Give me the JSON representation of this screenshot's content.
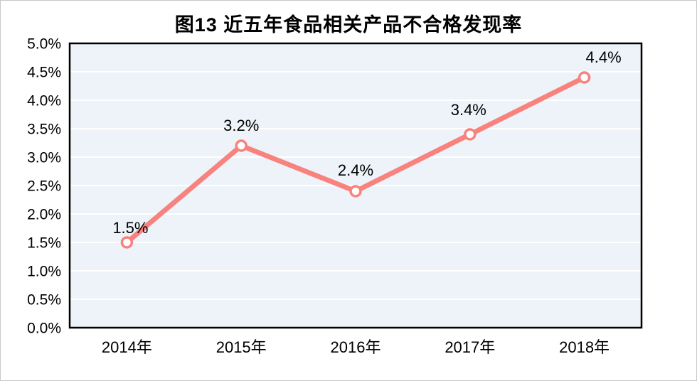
{
  "chart": {
    "title": "图13 近五年食品相关产品不合格发现率"
  },
  "chart_data": {
    "type": "line",
    "title": "图13 近五年食品相关产品不合格发现率",
    "categories": [
      "2014年",
      "2015年",
      "2016年",
      "2017年",
      "2018年"
    ],
    "values": [
      1.5,
      3.2,
      2.4,
      3.4,
      4.4
    ],
    "point_labels": [
      "1.5%",
      "3.2%",
      "2.4%",
      "3.4%",
      "4.4%"
    ],
    "y_ticks": [
      "0.0%",
      "0.5%",
      "1.0%",
      "1.5%",
      "2.0%",
      "2.5%",
      "3.0%",
      "3.5%",
      "4.0%",
      "4.5%",
      "5.0%"
    ],
    "y_tick_values": [
      0,
      0.5,
      1.0,
      1.5,
      2.0,
      2.5,
      3.0,
      3.5,
      4.0,
      4.5,
      5.0
    ],
    "ylim": [
      0,
      5
    ],
    "xlabel": "",
    "ylabel": "",
    "grid": "horizontal",
    "legend": "none",
    "colors": {
      "line": "#F7827E",
      "marker_fill": "#FFFFFF",
      "marker_stroke": "#F7827E",
      "plot_background": "#EDF3F8",
      "gridline": "#FFFFFF",
      "plot_border": "#000000",
      "text": "#000000"
    }
  }
}
